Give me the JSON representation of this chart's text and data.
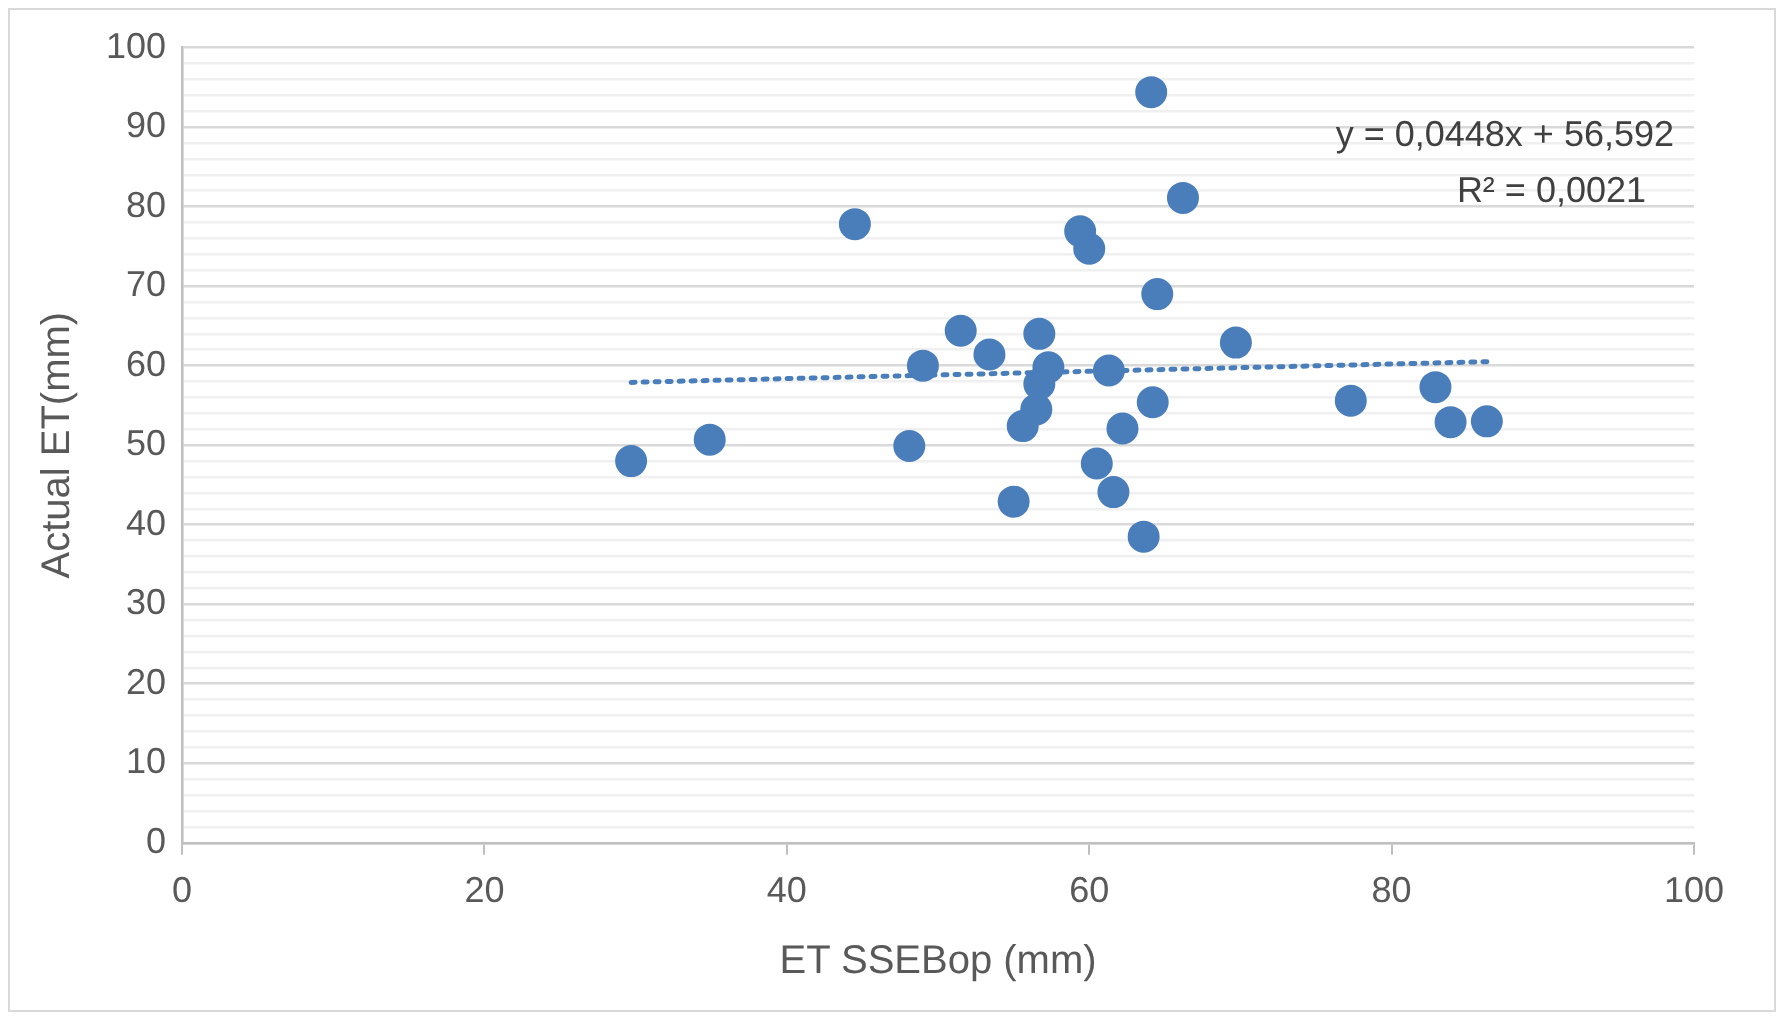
{
  "chart_data": {
    "type": "scatter",
    "xlabel": "ET SSEBop (mm)",
    "ylabel": "Actual ET(mm)",
    "xlim": [
      0,
      100
    ],
    "xticks": [
      0,
      20,
      40,
      60,
      80,
      100
    ],
    "ylim": [
      0,
      100
    ],
    "yticks": [
      0,
      {
        "value": 2,
        "label": null
      },
      {
        "value": 4,
        "label": null
      },
      {
        "value": 6,
        "label": null
      },
      {
        "value": 8,
        "label": null
      },
      10,
      {
        "value": 12,
        "label": null
      },
      {
        "value": 14,
        "label": null
      },
      {
        "value": 16,
        "label": null
      },
      {
        "value": 18,
        "label": null
      },
      20,
      {
        "value": 22,
        "label": null
      },
      {
        "value": 24,
        "label": null
      },
      {
        "value": 26,
        "label": null
      },
      {
        "value": 28,
        "label": null
      },
      30,
      {
        "value": 32,
        "label": null
      },
      {
        "value": 34,
        "label": null
      },
      {
        "value": 36,
        "label": null
      },
      {
        "value": 38,
        "label": null
      },
      40,
      {
        "value": 42,
        "label": null
      },
      {
        "value": 44,
        "label": null
      },
      {
        "value": 46,
        "label": null
      },
      {
        "value": 48,
        "label": null
      },
      50,
      {
        "value": 52,
        "label": null
      },
      {
        "value": 54,
        "label": null
      },
      {
        "value": 56,
        "label": null
      },
      {
        "value": 58,
        "label": null
      },
      60,
      {
        "value": 62,
        "label": null
      },
      {
        "value": 64,
        "label": null
      },
      {
        "value": 66,
        "label": null
      },
      {
        "value": 68,
        "label": null
      },
      70,
      {
        "value": 72,
        "label": null
      },
      {
        "value": 74,
        "label": null
      },
      {
        "value": 76,
        "label": null
      },
      {
        "value": 78,
        "label": null
      },
      80,
      {
        "value": 82,
        "label": null
      },
      {
        "value": 84,
        "label": null
      },
      {
        "value": 86,
        "label": null
      },
      {
        "value": 88,
        "label": null
      },
      90,
      {
        "value": 92,
        "label": null
      },
      {
        "value": 94,
        "label": null
      },
      {
        "value": 96,
        "label": null
      },
      {
        "value": 98,
        "label": null
      },
      100
    ],
    "grid": "y",
    "legend": false,
    "marker": "circle",
    "annotations": [
      "y = 0,0448x + 56,592",
      "R² = 0,0021"
    ],
    "series": [
      {
        "type": "scatter",
        "color": "#4a7ebb",
        "x": [
          29.7,
          34.9,
          44.5,
          48.1,
          49.0,
          51.5,
          53.4,
          55.0,
          55.6,
          56.5,
          56.7,
          56.7,
          57.3,
          59.4,
          60.0,
          60.5,
          61.3,
          61.6,
          62.2,
          63.6,
          64.1,
          64.2,
          64.5,
          66.2,
          69.7,
          77.3,
          82.9,
          83.9,
          86.3
        ],
        "values": [
          48.0,
          50.7,
          77.8,
          49.9,
          60.0,
          64.4,
          61.4,
          42.9,
          52.4,
          54.5,
          57.7,
          64.0,
          59.8,
          76.9,
          74.7,
          47.7,
          59.4,
          44.1,
          52.1,
          38.5,
          94.4,
          55.4,
          69.0,
          81.1,
          62.9,
          55.6,
          57.3,
          52.9,
          53.0
        ]
      },
      {
        "type": "line",
        "color": "#4a7ebb",
        "line_style": "dotted",
        "marker": "none",
        "x": [
          29.7,
          86.3
        ],
        "values": [
          57.9,
          60.5
        ]
      }
    ]
  }
}
